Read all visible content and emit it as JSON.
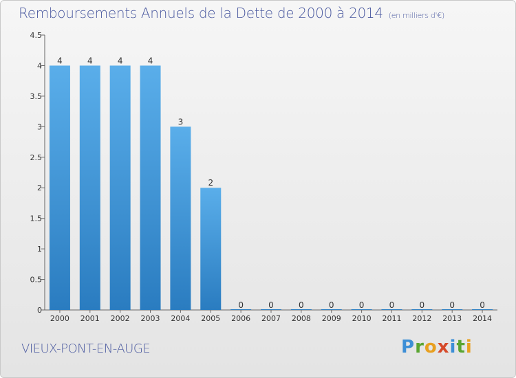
{
  "title": "Remboursements Annuels de la Dette de 2000 à 2014",
  "subtitle": "(en milliers d'€)",
  "commune": "VIEUX-PONT-EN-AUGE",
  "logo": {
    "letters": [
      "P",
      "r",
      "o",
      "x",
      "i",
      "t",
      "i"
    ],
    "colors": [
      "#3d8fd6",
      "#5aa532",
      "#e8a020",
      "#d64a2a"
    ]
  },
  "chart_data": {
    "type": "bar",
    "title": "Remboursements Annuels de la Dette de 2000 à 2014",
    "subtitle": "(en milliers d'€)",
    "xlabel": "",
    "ylabel": "",
    "categories": [
      "2000",
      "2001",
      "2002",
      "2003",
      "2004",
      "2005",
      "2006",
      "2007",
      "2008",
      "2009",
      "2010",
      "2011",
      "2012",
      "2013",
      "2014"
    ],
    "values": [
      4,
      4,
      4,
      4,
      3,
      2,
      0,
      0,
      0,
      0,
      0,
      0,
      0,
      0,
      0
    ],
    "data_labels": [
      "4",
      "4",
      "4",
      "4",
      "3",
      "2",
      "0",
      "0",
      "0",
      "0",
      "0",
      "0",
      "0",
      "0",
      "0"
    ],
    "ylim": [
      0,
      4.5
    ],
    "yticks": [
      0,
      0.5,
      1,
      1.5,
      2,
      2.5,
      3,
      3.5,
      4,
      4.5
    ],
    "ytick_labels": [
      "0",
      "0.5",
      "1",
      "1.5",
      "2",
      "2.5",
      "3",
      "3.5",
      "4",
      "4.5"
    ],
    "bar_color": "#4a9fe0",
    "grid": false,
    "legend": "none"
  }
}
